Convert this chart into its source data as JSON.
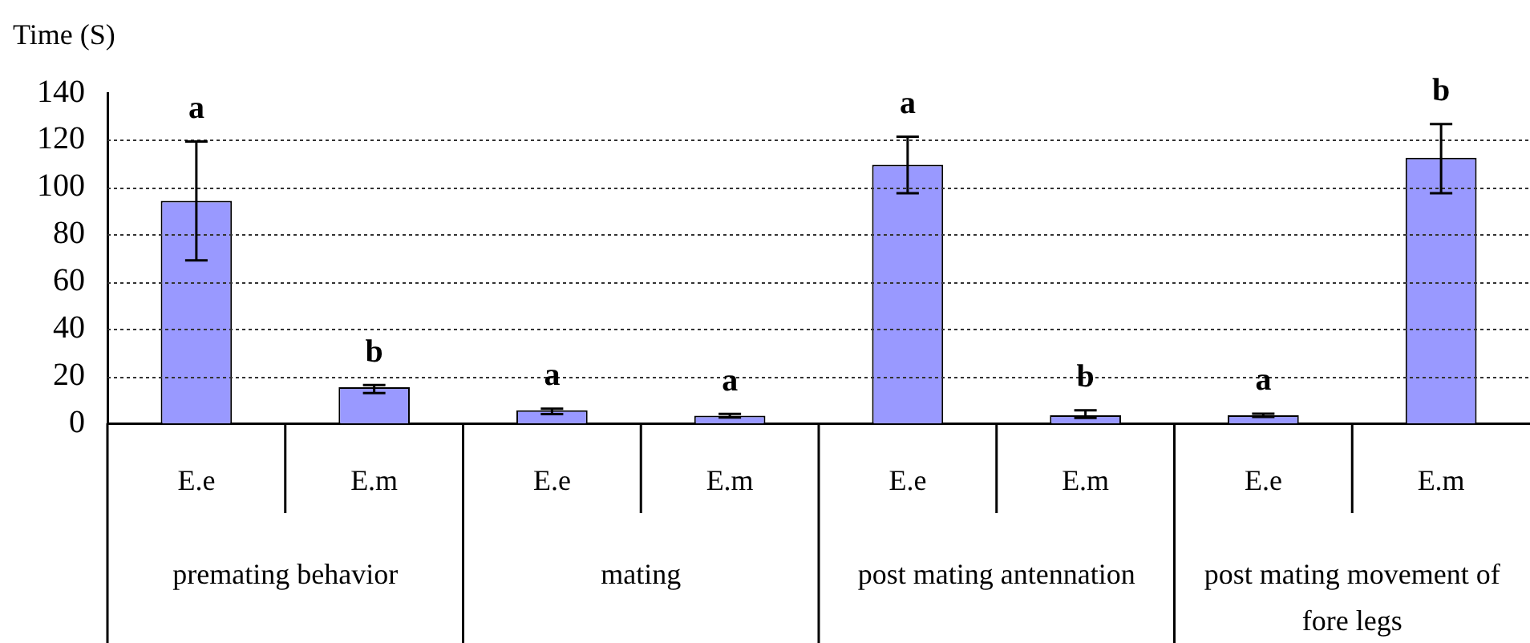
{
  "chart_data": {
    "type": "bar",
    "ylabel": "Time (S)",
    "categories": [
      "E.e",
      "E.m",
      "E.e",
      "E.m",
      "E.e",
      "E.m",
      "E.e",
      "E.m"
    ],
    "values": [
      94.3,
      15.3,
      5.5,
      3.2,
      109.6,
      3.4,
      3.4,
      112.6
    ],
    "errors": [
      [
        69.1,
        119.4
      ],
      [
        12.8,
        16.2
      ],
      [
        3.9,
        6.2
      ],
      [
        2.5,
        4.0
      ],
      [
        97.5,
        121.5
      ],
      [
        2.3,
        5.5
      ],
      [
        2.7,
        4.1
      ],
      [
        97.5,
        126.8
      ]
    ],
    "color": "#9999ff",
    "ylim": [
      0,
      140
    ],
    "yticks": [
      0,
      20,
      40,
      60,
      80,
      100,
      120,
      140
    ],
    "grid": "y",
    "legend": false,
    "annotations": [
      "a",
      "b",
      "a",
      "a",
      "a",
      "b",
      "a",
      "b",
      "premating behavior",
      "mating",
      "post mating antennation",
      "post mating movement of fore legs"
    ]
  }
}
